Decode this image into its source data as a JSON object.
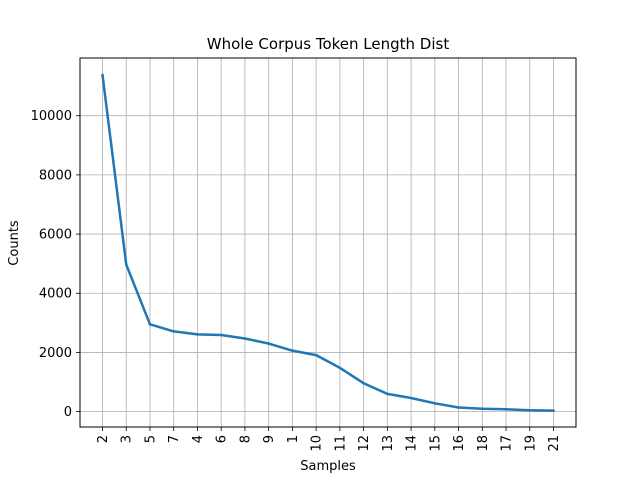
{
  "chart_data": {
    "type": "line",
    "title": "Whole Corpus Token Length Dist",
    "xlabel": "Samples",
    "ylabel": "Counts",
    "categories": [
      "2",
      "3",
      "5",
      "7",
      "4",
      "6",
      "8",
      "9",
      "1",
      "10",
      "11",
      "12",
      "13",
      "14",
      "15",
      "16",
      "18",
      "17",
      "19",
      "21"
    ],
    "series": [
      {
        "values": [
          11380,
          4970,
          2950,
          2710,
          2610,
          2590,
          2470,
          2300,
          2060,
          1910,
          1480,
          960,
          600,
          460,
          280,
          140,
          95,
          80,
          45,
          35
        ],
        "color": "#1f77b4"
      }
    ],
    "ylim": [
      -520,
      11950
    ],
    "yticks": [
      0,
      2000,
      4000,
      6000,
      8000,
      10000
    ],
    "grid": true
  }
}
